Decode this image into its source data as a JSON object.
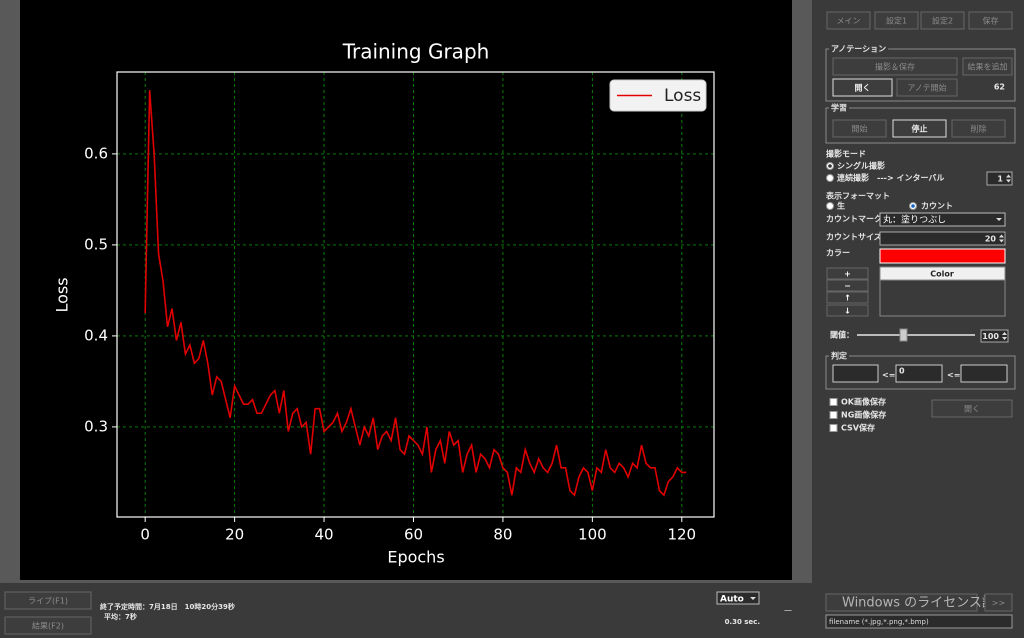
{
  "tabs": [
    "メイン",
    "設定1",
    "設定2",
    "保存"
  ],
  "annotation": {
    "title": "アノテーション",
    "buttons": [
      "撮影＆保存",
      "結果を追加",
      "開く",
      "アノテ開始"
    ],
    "count": 62
  },
  "learning": {
    "title": "学習",
    "buttons": [
      "開始",
      "停止",
      "削除"
    ]
  },
  "capture_mode": {
    "title": "撮影モード",
    "options": [
      "シングル撮影",
      "連続撮影　---> インターバル"
    ],
    "interval": 1
  },
  "display_format": {
    "title": "表示フォーマット",
    "options": [
      "生",
      "カウント"
    ]
  },
  "count_mark": {
    "label": "カウントマーク",
    "value": "丸：塗りつぶし"
  },
  "count_size": {
    "label": "カウントサイズ",
    "value": 20
  },
  "color": {
    "label": "カラー",
    "list_header": "Color",
    "buttons": [
      "+",
      "−",
      "↑",
      "↓"
    ]
  },
  "threshold": {
    "label": "閾値：",
    "value": 100
  },
  "judgement": {
    "title": "判定",
    "ops": [
      "<=",
      "<="
    ],
    "middle": 0
  },
  "save": {
    "options": [
      "OK画像保存",
      "NG画像保存",
      "CSV保存"
    ],
    "button": "開く"
  },
  "bottom": {
    "live": "ライブ(F1)",
    "result": "結果(F2)",
    "end_time": "終了予定時間：7月18日　10時20分39秒",
    "average": "平均：7秒",
    "mode": "Auto",
    "dash": "—",
    "interval": "0.30 sec.",
    "next": ">>",
    "filename": "filename (*.jpg,*.png,*.bmp)",
    "watermark": "Windows のライセンス認証"
  },
  "chart_data": {
    "type": "line",
    "title": "Training Graph",
    "x_label": "Epochs",
    "y_label": "Loss",
    "x": [
      0,
      1,
      2,
      3,
      4,
      5,
      6,
      7,
      8,
      9,
      10,
      11,
      12,
      13,
      14,
      15,
      16,
      17,
      18,
      19,
      20,
      21,
      22,
      23,
      24,
      25,
      26,
      27,
      28,
      29,
      30,
      31,
      32,
      33,
      34,
      35,
      36,
      37,
      38,
      39,
      40,
      41,
      42,
      43,
      44,
      45,
      46,
      47,
      48,
      49,
      50,
      51,
      52,
      53,
      54,
      55,
      56,
      57,
      58,
      59,
      60,
      61,
      62,
      63,
      64,
      65,
      66,
      67,
      68,
      69,
      70,
      71,
      72,
      73,
      74,
      75,
      76,
      77,
      78,
      79,
      80,
      81,
      82,
      83,
      84,
      85,
      86,
      87,
      88,
      89,
      90,
      91,
      92,
      93,
      94,
      95,
      96,
      97,
      98,
      99,
      100,
      101,
      102,
      103,
      104,
      105,
      106,
      107,
      108,
      109,
      110,
      111,
      112,
      113,
      114,
      115,
      116,
      117,
      118,
      119,
      120,
      121
    ],
    "series": [
      {
        "name": "Loss",
        "color": "#e00000",
        "values": [
          0.425,
          0.67,
          0.6,
          0.49,
          0.46,
          0.41,
          0.43,
          0.395,
          0.415,
          0.38,
          0.39,
          0.37,
          0.375,
          0.395,
          0.37,
          0.335,
          0.355,
          0.35,
          0.33,
          0.31,
          0.345,
          0.335,
          0.325,
          0.325,
          0.33,
          0.315,
          0.315,
          0.325,
          0.335,
          0.34,
          0.315,
          0.34,
          0.295,
          0.315,
          0.32,
          0.3,
          0.305,
          0.27,
          0.32,
          0.32,
          0.295,
          0.3,
          0.305,
          0.315,
          0.295,
          0.305,
          0.32,
          0.3,
          0.28,
          0.3,
          0.29,
          0.31,
          0.275,
          0.29,
          0.295,
          0.285,
          0.31,
          0.275,
          0.27,
          0.29,
          0.285,
          0.28,
          0.27,
          0.3,
          0.25,
          0.275,
          0.285,
          0.26,
          0.295,
          0.28,
          0.285,
          0.25,
          0.27,
          0.28,
          0.25,
          0.27,
          0.265,
          0.255,
          0.275,
          0.27,
          0.255,
          0.25,
          0.225,
          0.255,
          0.25,
          0.275,
          0.26,
          0.25,
          0.265,
          0.255,
          0.25,
          0.26,
          0.28,
          0.255,
          0.255,
          0.23,
          0.225,
          0.245,
          0.255,
          0.25,
          0.23,
          0.255,
          0.25,
          0.275,
          0.255,
          0.25,
          0.26,
          0.255,
          0.245,
          0.26,
          0.255,
          0.28,
          0.26,
          0.255,
          0.255,
          0.23,
          0.225,
          0.24,
          0.245,
          0.255,
          0.25,
          0.25
        ]
      }
    ],
    "xlim": [
      -6.3,
      127.2
    ],
    "ylim": [
      0.201,
      0.69
    ],
    "xticks": [
      0,
      20,
      40,
      60,
      80,
      100,
      120
    ],
    "yticks": [
      0.3,
      0.4,
      0.5,
      0.6
    ],
    "grid": true,
    "legend": "upper right"
  }
}
